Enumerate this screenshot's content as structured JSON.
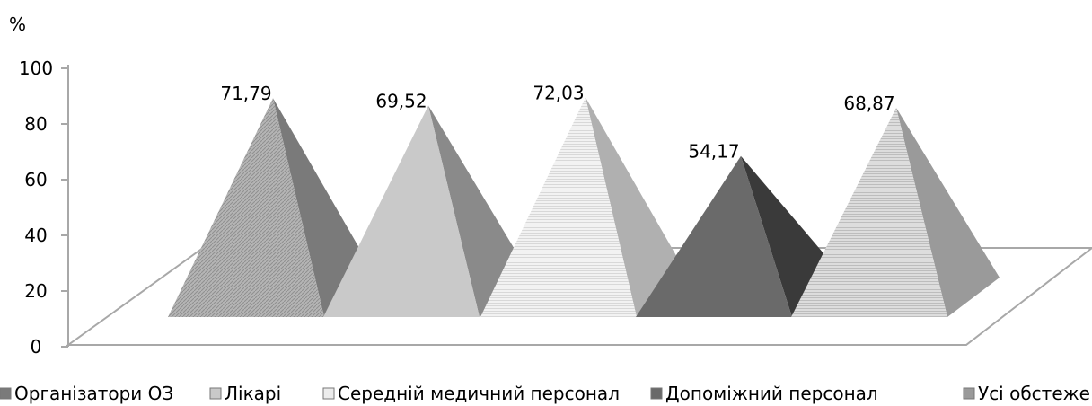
{
  "chart_data": {
    "type": "bar",
    "bar_shape": "pyramid",
    "three_d": true,
    "ylabel": "%",
    "ylim": [
      0,
      100
    ],
    "yticks": [
      "0",
      "20",
      "40",
      "60",
      "80",
      "100"
    ],
    "grid": false,
    "legend_position": "bottom",
    "categories": [
      "Організатори ОЗ",
      "Лікарі",
      "Середній медичний персонал",
      "Допоміжний персонал",
      "Усі обстежені"
    ],
    "values": [
      71.79,
      69.52,
      72.03,
      54.17,
      68.87
    ],
    "value_labels": [
      "71,79",
      "69,52",
      "72,03",
      "54,17",
      "68,87"
    ],
    "legend_labels": [
      "Організатори ОЗ",
      "Лікарі",
      "Середній медичний персонал",
      "Допоміжний персонал",
      "Усі обстеже"
    ],
    "colors": {
      "front": [
        "#a9a9a9",
        "#c9c9c9",
        "#ececec",
        "#6a6a6a",
        "#d6d6d6"
      ],
      "side": [
        "#7a7a7a",
        "#8a8a8a",
        "#b0b0b0",
        "#3a3a3a",
        "#9a9a9a"
      ],
      "axis": "#a8a8a8"
    }
  }
}
